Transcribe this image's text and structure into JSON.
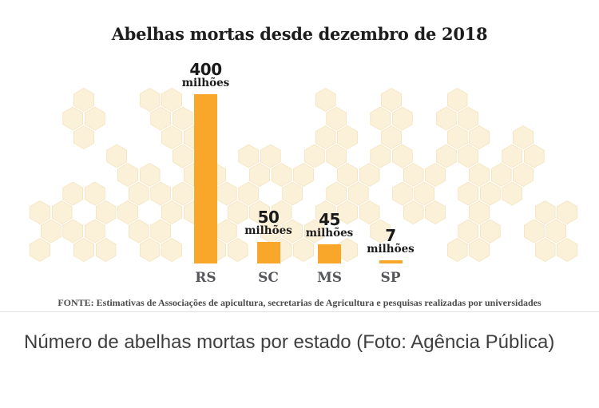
{
  "chart_data": {
    "type": "bar",
    "title": "Abelhas mortas desde dezembro de 2018",
    "categories": [
      "RS",
      "SC",
      "MS",
      "SP"
    ],
    "values": [
      400,
      50,
      45,
      7
    ],
    "value_unit": "milhões",
    "value_labels": [
      "400 milhões",
      "50 milhões",
      "45 milhões",
      "7 milhões"
    ],
    "xlabel": "",
    "ylabel": "",
    "ylim": [
      0,
      400
    ],
    "grid": false,
    "legend": false,
    "bar_color": "#F9A72B",
    "value_label_color": "#1A1A1A",
    "category_label_color": "#56575B",
    "source": "FONTE: Estimativas de Associações de apicultura, secretarias de Agricultura e pesquisas realizadas por universidades",
    "background_pattern": "honeycomb"
  },
  "honeycomb": {
    "hex_fill": "#FBF1D9",
    "hex_border": "#F5E6C3",
    "rows": [
      [
        2,
        5,
        6,
        13,
        16,
        19
      ],
      [
        1,
        2,
        5,
        6,
        7,
        13,
        15,
        16,
        18,
        19
      ],
      [
        2,
        6,
        7,
        13,
        14,
        16,
        19,
        20,
        22
      ],
      [
        3,
        6,
        7,
        9,
        10,
        12,
        13,
        15,
        16,
        18,
        19,
        21,
        22
      ],
      [
        4,
        5,
        7,
        8,
        10,
        11,
        12,
        14,
        15,
        17,
        18,
        20,
        21,
        22
      ],
      [
        1,
        2,
        4,
        5,
        6,
        8,
        9,
        11,
        13,
        14,
        16,
        17,
        19,
        20,
        21
      ],
      [
        0,
        1,
        3,
        4,
        6,
        7,
        9,
        10,
        11,
        13,
        14,
        15,
        17,
        18,
        20,
        23,
        24
      ],
      [
        0,
        1,
        2,
        4,
        5,
        7,
        8,
        10,
        11,
        12,
        15,
        19,
        20,
        22,
        23
      ],
      [
        0,
        2,
        3,
        5,
        6,
        8,
        9,
        11,
        12,
        14,
        19,
        20,
        23,
        24
      ]
    ]
  },
  "caption": {
    "text": "Número de abelhas mortas por estado (Foto: Agência Pública)"
  }
}
